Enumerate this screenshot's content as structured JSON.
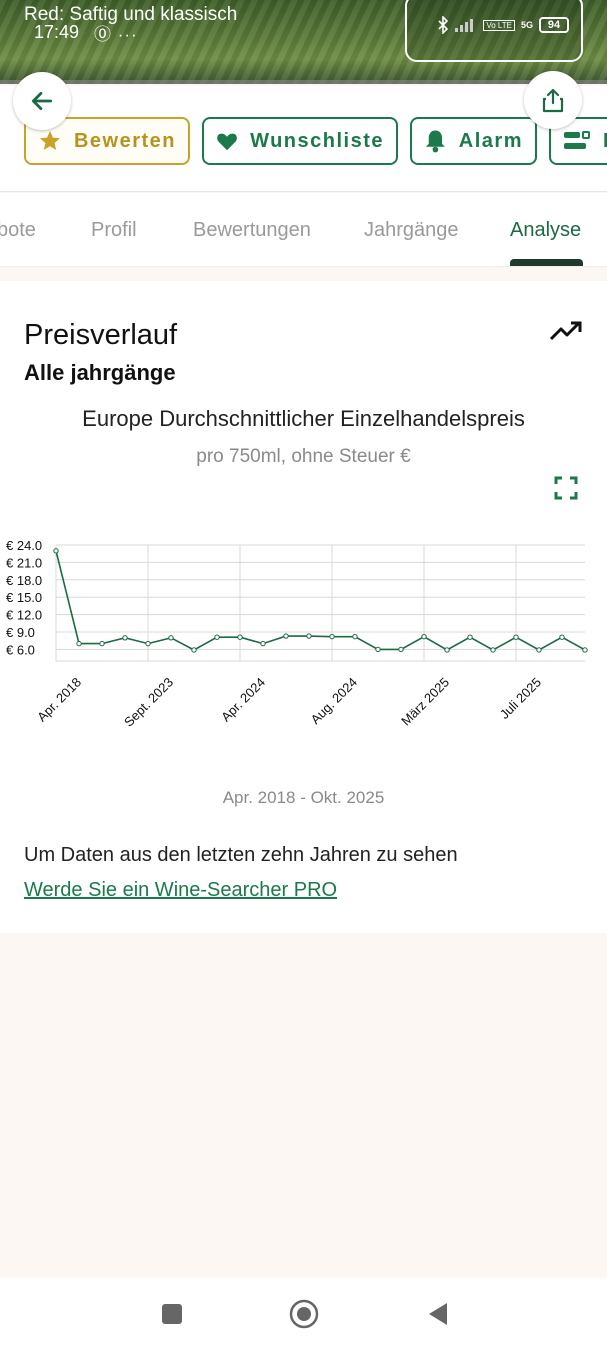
{
  "status_bar": {
    "notification_title": "Red: Saftig und klassisch",
    "time": "17:49",
    "extra": "⓪ ···",
    "network_label": "5G",
    "volte_label": "Vo LTE",
    "battery": "94"
  },
  "actions": [
    {
      "label": "Bewerten",
      "icon": "star-icon"
    },
    {
      "label": "Wunschliste",
      "icon": "heart-icon"
    },
    {
      "label": "Alarm",
      "icon": "bell-icon"
    },
    {
      "label": "K",
      "icon": "compare-icon"
    }
  ],
  "tabs": [
    {
      "label": "bote"
    },
    {
      "label": "Profil"
    },
    {
      "label": "Bewertungen"
    },
    {
      "label": "Jahrgänge"
    },
    {
      "label": "Analyse",
      "active": true
    }
  ],
  "card": {
    "title": "Preisverlauf",
    "subtitle": "Alle jahrgänge",
    "heading": "Europe  Durchschnittlicher Einzelhandelspreis",
    "note": "pro 750ml, ohne Steuer €",
    "range": "Apr. 2018 - Okt. 2025",
    "pro_text": "Um Daten aus den letzten zehn Jahren zu sehen",
    "pro_link": "Werde Sie ein Wine-Searcher PRO"
  },
  "chart_data": {
    "type": "line",
    "title": "Europe  Durchschnittlicher Einzelhandelspreis",
    "subtitle": "pro 750ml, ohne Steuer €",
    "ylabel": "",
    "xlabel": "",
    "y_ticks": [
      "€ 24.0",
      "€ 21.0",
      "€ 18.0",
      "€ 15.0",
      "€ 12.0",
      "€ 9.0",
      "€ 6.0"
    ],
    "y_tick_values": [
      24,
      21,
      18,
      15,
      12,
      9,
      6
    ],
    "ylim": [
      4,
      24
    ],
    "x_tick_labels": [
      "Apr. 2018",
      "Sept. 2023",
      "Apr. 2024",
      "Aug. 2024",
      "März 2025",
      "Juli 2025"
    ],
    "grid": true,
    "color": "#1a6a44",
    "series": [
      {
        "values": [
          23.0,
          7.0,
          7.0,
          8.0,
          7.0,
          8.0,
          5.9,
          8.1,
          8.1,
          7.0,
          8.3,
          8.3,
          8.2,
          8.2,
          6.0,
          6.0,
          8.2,
          5.9,
          8.1,
          5.9,
          8.1,
          5.9,
          8.1,
          5.9
        ]
      }
    ]
  },
  "colors": {
    "brand_green": "#1a7a4a",
    "gold": "#c9a227"
  }
}
